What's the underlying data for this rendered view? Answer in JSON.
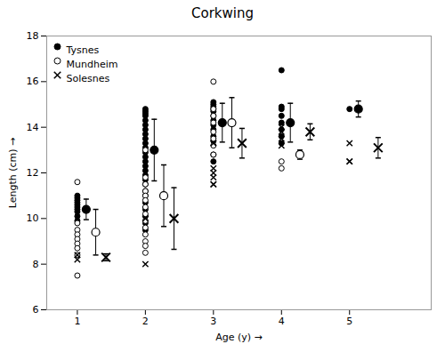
{
  "chart_data": {
    "type": "scatter",
    "title": "Corkwing",
    "xlabel": "Age (y)",
    "ylabel": "Length (cm)",
    "xlim": [
      0.55,
      6.2
    ],
    "ylim": [
      6,
      18
    ],
    "xticks": [
      1,
      2,
      3,
      4,
      5
    ],
    "yticks": [
      6,
      8,
      10,
      12,
      14,
      16,
      18
    ],
    "legend": "upper left",
    "series": [
      {
        "name": "Tysnes",
        "marker": "filled_circle",
        "color": "black",
        "x": [
          1,
          2,
          3,
          4,
          5
        ],
        "raw": [
          [
            11.0,
            10.9,
            10.8,
            10.7,
            10.6,
            10.5,
            10.4,
            10.3,
            10.1,
            9.9
          ],
          [
            14.8,
            14.7,
            14.6,
            14.5,
            14.3,
            14.1,
            13.9,
            13.7,
            13.5,
            13.3,
            13.1,
            12.9,
            12.7,
            12.5,
            12.3,
            12.1,
            11.9,
            11.7,
            11.5,
            11.2,
            11.0,
            10.7,
            10.4,
            10.1,
            9.8,
            9.5
          ],
          [
            15.1,
            15.0,
            14.9,
            14.8,
            14.7,
            14.5,
            14.3,
            14.1,
            13.9,
            13.6,
            13.4,
            12.8,
            12.5
          ],
          [
            16.5,
            14.9,
            14.8,
            14.5,
            14.2,
            13.9,
            13.6,
            13.3
          ],
          [
            14.8
          ]
        ],
        "means": [
          10.4,
          13.0,
          14.2,
          14.2,
          14.8
        ],
        "sd": [
          0.45,
          1.35,
          0.85,
          0.85,
          0.35
        ]
      },
      {
        "name": "Mundheim",
        "marker": "open_circle",
        "color": "black",
        "x": [
          1,
          2,
          3,
          4,
          5
        ],
        "raw": [
          [
            11.6,
            9.8,
            9.5,
            9.3,
            9.1,
            8.9,
            8.7,
            8.4,
            7.5
          ],
          [
            13.0,
            11.8,
            11.5,
            11.2,
            11.0,
            10.8,
            10.5,
            10.2,
            9.9,
            9.6,
            9.3,
            9.0,
            8.8,
            8.5
          ],
          [
            16.0,
            14.8,
            14.5,
            14.2,
            13.8,
            13.5,
            13.2,
            12.8
          ],
          [
            12.5,
            12.2
          ],
          []
        ],
        "means": [
          9.4,
          11.0,
          14.2,
          12.8,
          null
        ],
        "sd": [
          1.0,
          1.35,
          1.1,
          0.2,
          null
        ]
      },
      {
        "name": "Solesnes",
        "marker": "x",
        "color": "black",
        "x": [
          1,
          2,
          3,
          4,
          5
        ],
        "raw": [
          [
            8.4,
            8.2
          ],
          [
            10.0,
            8.0
          ],
          [
            13.3,
            12.2,
            12.0,
            11.8,
            11.5,
            11.5
          ],
          [
            14.0,
            13.8,
            13.5,
            13.2
          ],
          [
            13.3,
            12.5,
            12.5
          ]
        ],
        "means": [
          8.3,
          10.0,
          13.3,
          13.8,
          13.1
        ],
        "sd": [
          0.15,
          1.35,
          0.65,
          0.35,
          0.45
        ]
      }
    ]
  }
}
